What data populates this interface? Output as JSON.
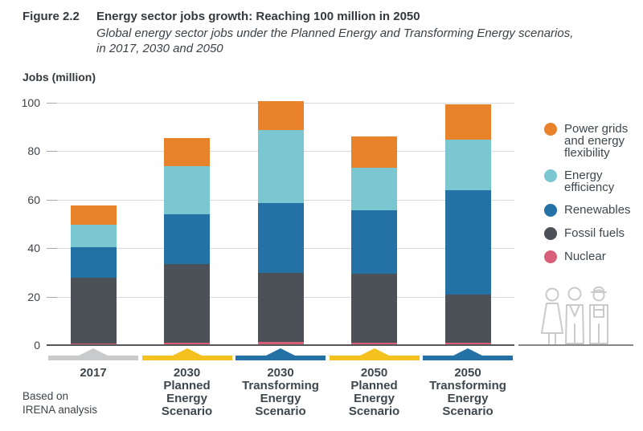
{
  "figure": {
    "label": "Figure 2.2",
    "title": "Energy sector jobs growth: Reaching 100 million in 2050",
    "subtitle_line1": "Global energy sector jobs under the Planned Energy and Transforming Energy scenarios,",
    "subtitle_line2": "in 2017, 2030 and 2050"
  },
  "axis": {
    "y_label": "Jobs (million)",
    "y_ticks": [
      100,
      80,
      60,
      40,
      20,
      0
    ]
  },
  "source": {
    "line1": "Based on",
    "line2": "IRENA analysis"
  },
  "legend": [
    {
      "label": "Power grids and energy flexibility",
      "color": "#e8822b"
    },
    {
      "label": "Energy efficiency",
      "color": "#7bc7d1"
    },
    {
      "label": "Renewables",
      "color": "#2471a5"
    },
    {
      "label": "Fossil fuels",
      "color": "#4b5156"
    },
    {
      "label": "Nuclear",
      "color": "#d85f78"
    }
  ],
  "chart_data": {
    "type": "bar",
    "stacked": true,
    "title": "Energy sector jobs growth: Reaching 100 million in 2050",
    "ylabel": "Jobs (million)",
    "ylim": [
      0,
      100
    ],
    "grid": true,
    "legend_position": "right",
    "categories": [
      "2017",
      "2030 Planned Energy Scenario",
      "2030 Transforming Energy Scenario",
      "2050 Planned Energy Scenario",
      "2050 Transforming Energy Scenario"
    ],
    "category_label_lines": [
      [
        "2017"
      ],
      [
        "2030",
        "Planned",
        "Energy",
        "Scenario"
      ],
      [
        "2030",
        "Transforming",
        "Energy",
        "Scenario"
      ],
      [
        "2050",
        "Planned",
        "Energy",
        "Scenario"
      ],
      [
        "2050",
        "Transforming",
        "Energy",
        "Scenario"
      ]
    ],
    "series": [
      {
        "name": "Nuclear",
        "color": "#d85f78",
        "values": [
          0.8,
          1.0,
          1.0,
          1.0,
          0.8
        ]
      },
      {
        "name": "Fossil fuels",
        "color": "#4b5156",
        "values": [
          27.0,
          32.5,
          28.5,
          28.5,
          20.0
        ]
      },
      {
        "name": "Renewables",
        "color": "#2471a5",
        "values": [
          12.5,
          20.5,
          29.0,
          26.0,
          43.0
        ]
      },
      {
        "name": "Energy efficiency",
        "color": "#7bc7d1",
        "values": [
          9.6,
          20.0,
          30.0,
          17.5,
          21.0
        ]
      },
      {
        "name": "Power grids and energy flexibility",
        "color": "#e8822b",
        "values": [
          7.8,
          11.5,
          12.0,
          13.0,
          14.5
        ]
      }
    ],
    "totals": [
      57.7,
      85.5,
      100.5,
      86.0,
      99.3
    ],
    "scenario_marker_colors": [
      "#c9cacb",
      "#f4c11e",
      "#2471a5",
      "#f4c11e",
      "#2471a5"
    ]
  }
}
